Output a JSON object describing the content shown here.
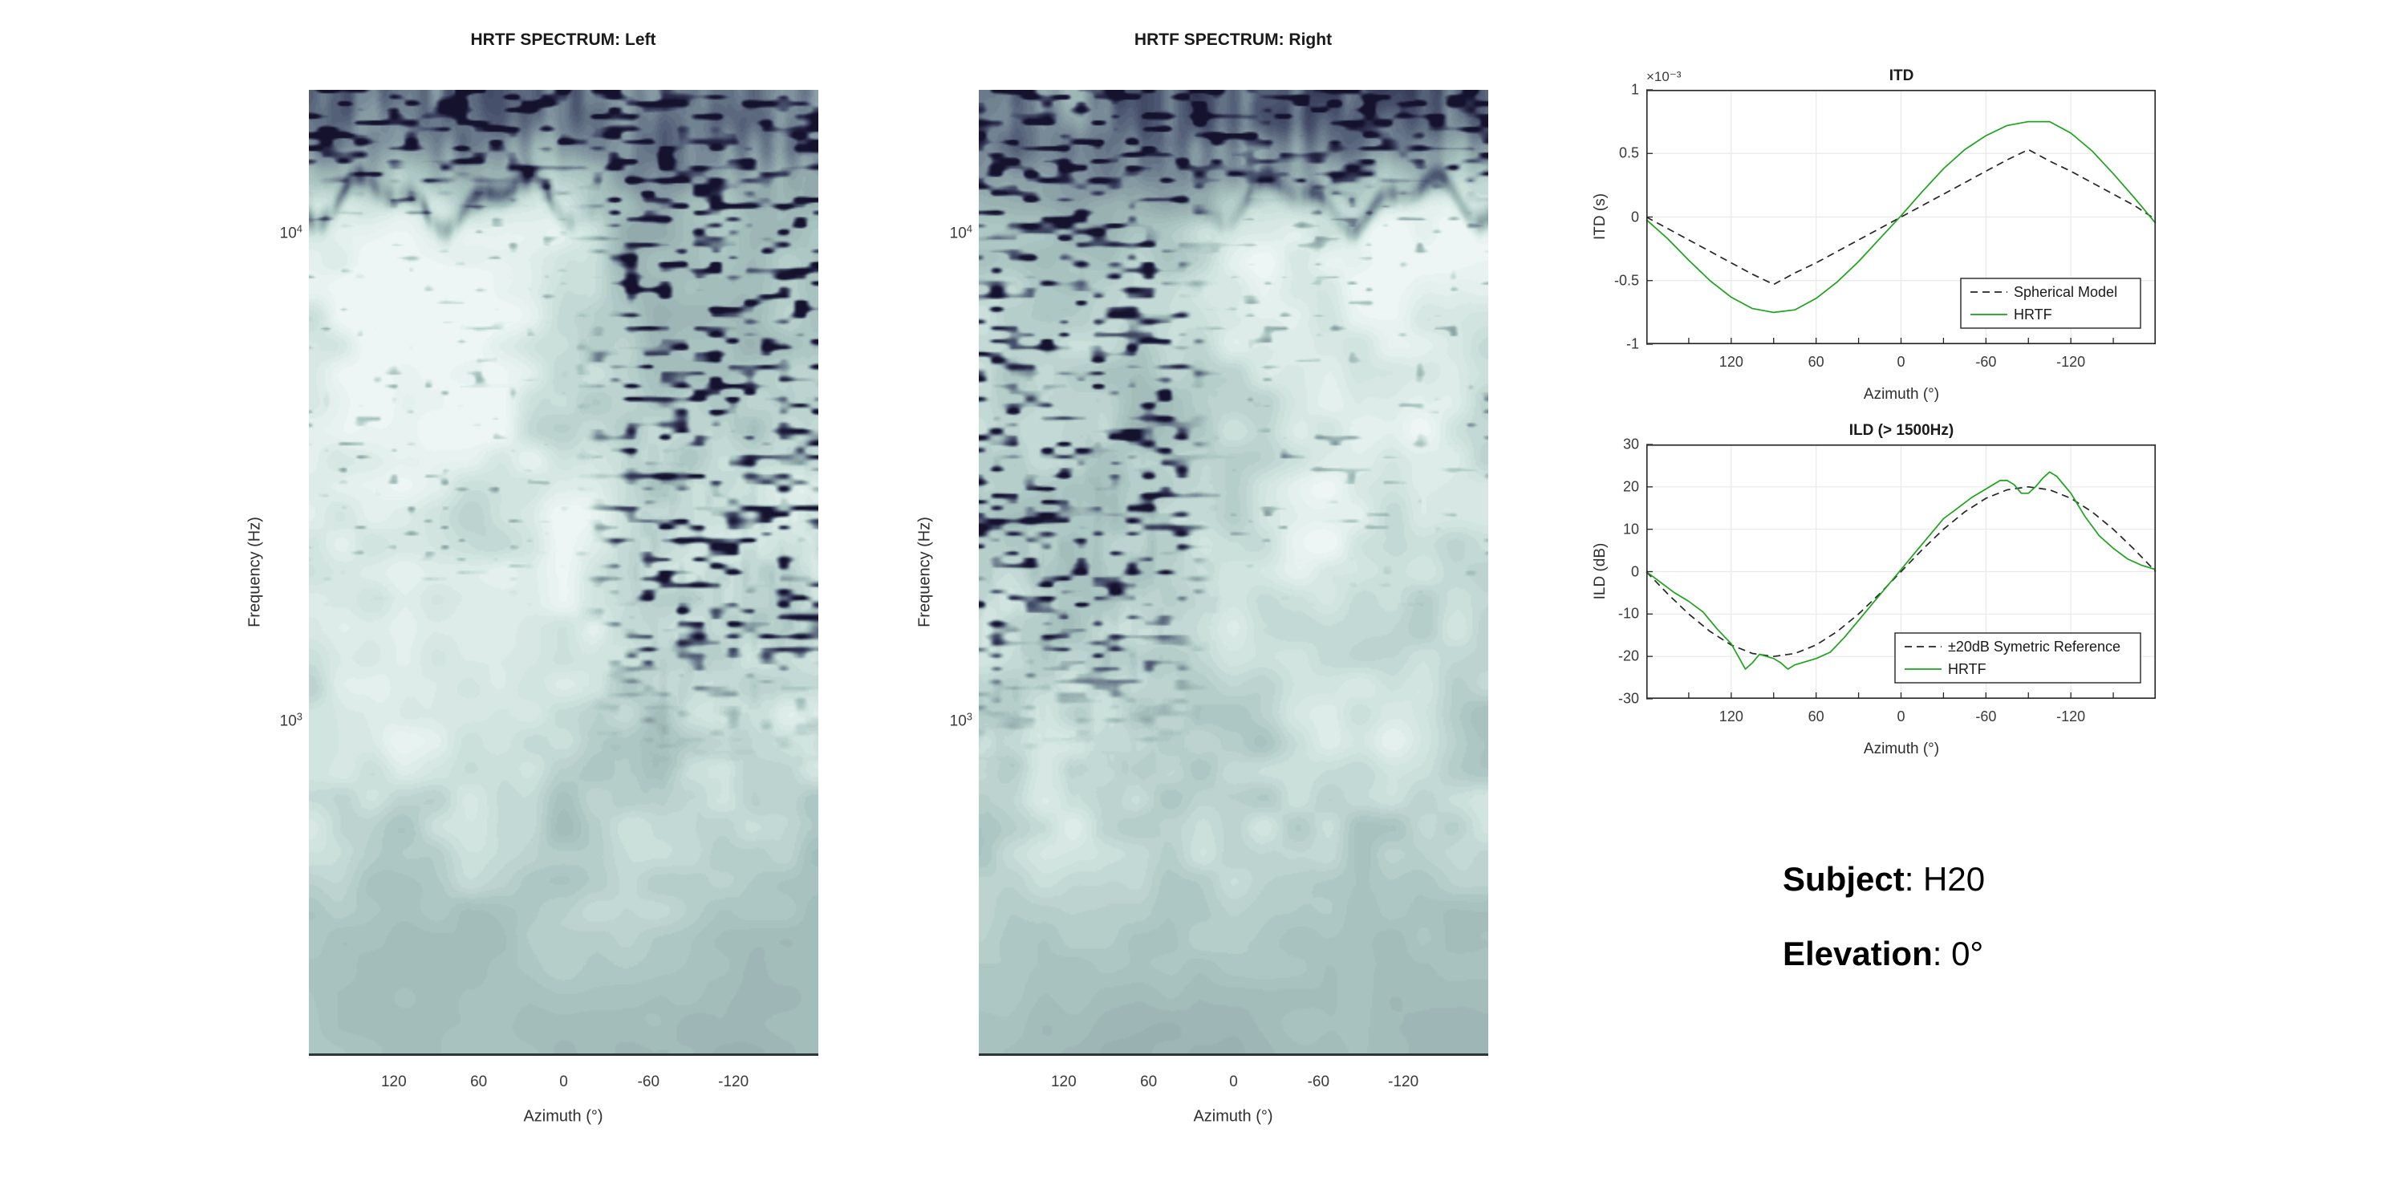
{
  "figure": {
    "background": "#ffffff",
    "axis_color": "#262626",
    "grid_color": "#e9e9e9",
    "accent_green": "#1CA41C",
    "heatmap_palette": [
      "#100e28",
      "#2b2c4a",
      "#4a546e",
      "#788a98",
      "#98b0b0",
      "#acc7c3",
      "#cfe2de",
      "#e4f1ee",
      "#f2f9f7"
    ]
  },
  "annotations": {
    "subject_label": "Subject",
    "subject_value": ": H20",
    "elevation_label": "Elevation",
    "elevation_value": ": 0°"
  },
  "chart_data": [
    {
      "id": "spectrum_left",
      "type": "heatmap",
      "title": "HRTF SPECTRUM: Left",
      "xlabel": "Azimuth (°)",
      "ylabel": "Frequency (Hz)",
      "x_range": [
        180,
        -180
      ],
      "x_axis_reversed": true,
      "x_tick_labels": [
        "120",
        "60",
        "0",
        "-60",
        "-120"
      ],
      "x_tick_values": [
        120,
        60,
        0,
        -60,
        -120
      ],
      "y_scale": "log",
      "y_range_hz": [
        200,
        20000
      ],
      "y_tick_labels": [
        {
          "base": "10",
          "exp": "4"
        },
        {
          "base": "10",
          "exp": "3"
        }
      ],
      "y_tick_hz": [
        10000,
        1000
      ],
      "description": "Left-ear HRTF magnitude heatmap: pale sage/teal field, bright ipsilateral (positive azimuth) mid/high-frequency band near 10 kHz, dense dark spectral-notch speckles on the contralateral (negative azimuth) side above ~3 kHz, dark streaked band at the top (16-20 kHz).",
      "speckle_side": "right",
      "seed": 7
    },
    {
      "id": "spectrum_right",
      "type": "heatmap",
      "title": "HRTF SPECTRUM: Right",
      "xlabel": "Azimuth (°)",
      "ylabel": "Frequency (Hz)",
      "x_range": [
        180,
        -180
      ],
      "x_axis_reversed": true,
      "x_tick_labels": [
        "120",
        "60",
        "0",
        "-60",
        "-120"
      ],
      "x_tick_values": [
        120,
        60,
        0,
        -60,
        -120
      ],
      "y_scale": "log",
      "y_range_hz": [
        200,
        20000
      ],
      "y_tick_labels": [
        {
          "base": "10",
          "exp": "4"
        },
        {
          "base": "10",
          "exp": "3"
        }
      ],
      "y_tick_hz": [
        10000,
        1000
      ],
      "description": "Right-ear HRTF magnitude heatmap: mirror image of the left ear — dark notch speckles concentrated on the positive-azimuth (left) side, bright band near 10 kHz on the negative-azimuth side.",
      "speckle_side": "left",
      "seed": 21
    },
    {
      "id": "itd",
      "type": "line",
      "title": "ITD",
      "xlabel": "Azimuth (°)",
      "ylabel": "ITD (s)",
      "y_offset_text": "×10⁻³",
      "unit_note": "y values in milliseconds (×10⁻³ s)",
      "x_range": [
        180,
        -180
      ],
      "x_axis_reversed": true,
      "x_tick_step": 30,
      "x_tick_labels": [
        "120",
        "60",
        "0",
        "-60",
        "-120"
      ],
      "x_tick_values": [
        120,
        60,
        0,
        -60,
        -120
      ],
      "ylim": [
        -1,
        1
      ],
      "y_tick_labels": [
        "1",
        "0.5",
        "0",
        "-0.5",
        "-1"
      ],
      "y_tick_values": [
        1,
        0.5,
        0,
        -0.5,
        -1
      ],
      "grid": true,
      "legend_position": "south-east-inside",
      "series": [
        {
          "name": "Spherical Model",
          "style": "dashed",
          "color": "#262626",
          "x": [
            180,
            165,
            150,
            135,
            120,
            105,
            90,
            75,
            60,
            45,
            30,
            15,
            0,
            -15,
            -30,
            -45,
            -60,
            -75,
            -90,
            -105,
            -120,
            -135,
            -150,
            -165,
            -180
          ],
          "y": [
            0,
            -0.09,
            -0.18,
            -0.27,
            -0.36,
            -0.45,
            -0.53,
            -0.44,
            -0.36,
            -0.27,
            -0.18,
            -0.09,
            0,
            0.09,
            0.18,
            0.27,
            0.36,
            0.45,
            0.53,
            0.44,
            0.36,
            0.27,
            0.18,
            0.09,
            -0.02
          ]
        },
        {
          "name": "HRTF",
          "style": "solid",
          "color": "#1CA41C",
          "x": [
            180,
            165,
            150,
            135,
            120,
            105,
            90,
            75,
            60,
            45,
            30,
            15,
            0,
            -15,
            -30,
            -45,
            -60,
            -75,
            -90,
            -105,
            -120,
            -135,
            -150,
            -165,
            -180
          ],
          "y": [
            -0.02,
            -0.17,
            -0.34,
            -0.5,
            -0.63,
            -0.72,
            -0.75,
            -0.73,
            -0.64,
            -0.51,
            -0.35,
            -0.17,
            0.01,
            0.2,
            0.38,
            0.53,
            0.64,
            0.72,
            0.75,
            0.75,
            0.66,
            0.52,
            0.34,
            0.15,
            -0.05
          ]
        }
      ]
    },
    {
      "id": "ild",
      "type": "line",
      "title": "ILD (> 1500Hz)",
      "xlabel": "Azimuth (°)",
      "ylabel": "ILD (dB)",
      "y_offset_text": "",
      "x_range": [
        180,
        -180
      ],
      "x_axis_reversed": true,
      "x_tick_step": 30,
      "x_tick_labels": [
        "120",
        "60",
        "0",
        "-60",
        "-120"
      ],
      "x_tick_values": [
        120,
        60,
        0,
        -60,
        -120
      ],
      "ylim": [
        -30,
        30
      ],
      "y_tick_labels": [
        "30",
        "20",
        "10",
        "0",
        "-10",
        "-20",
        "-30"
      ],
      "y_tick_values": [
        30,
        20,
        10,
        0,
        -10,
        -20,
        -30
      ],
      "grid": true,
      "legend_position": "south-east-inside",
      "series": [
        {
          "name": "±20dB Symetric Reference",
          "style": "dashed",
          "color": "#262626",
          "x": [
            180,
            165,
            150,
            135,
            120,
            105,
            90,
            75,
            60,
            45,
            30,
            15,
            0,
            -15,
            -30,
            -45,
            -60,
            -75,
            -90,
            -105,
            -120,
            -135,
            -150,
            -165,
            -180
          ],
          "y": [
            0,
            -5.2,
            -10,
            -14.1,
            -17.3,
            -19.3,
            -20,
            -19.3,
            -17.3,
            -14.1,
            -10,
            -5.2,
            0,
            5.2,
            10,
            14.1,
            17.3,
            19.3,
            20,
            19.3,
            17.3,
            14.1,
            10,
            5.2,
            0
          ]
        },
        {
          "name": "HRTF",
          "style": "solid",
          "color": "#1CA41C",
          "x": [
            180,
            170,
            160,
            150,
            140,
            130,
            120,
            115,
            110,
            105,
            100,
            95,
            90,
            85,
            80,
            75,
            70,
            60,
            50,
            40,
            30,
            20,
            10,
            0,
            -10,
            -20,
            -30,
            -40,
            -50,
            -60,
            -70,
            -75,
            -80,
            -85,
            -90,
            -95,
            -100,
            -105,
            -110,
            -115,
            -120,
            -130,
            -140,
            -150,
            -160,
            -170,
            -180
          ],
          "y": [
            0,
            -2.5,
            -5,
            -7,
            -9.5,
            -13.5,
            -17,
            -20,
            -23,
            -21.5,
            -19.5,
            -20,
            -20.5,
            -21.5,
            -23,
            -22,
            -21.5,
            -20.5,
            -19,
            -15.5,
            -11.5,
            -7.5,
            -3.5,
            0.5,
            4.5,
            8.5,
            12.5,
            15,
            17.5,
            19.5,
            21.5,
            21.5,
            20.5,
            18.5,
            18.5,
            20,
            22,
            23.5,
            22.5,
            20.5,
            18.5,
            13,
            8.5,
            5.5,
            3,
            1.5,
            0.5
          ]
        }
      ]
    }
  ]
}
